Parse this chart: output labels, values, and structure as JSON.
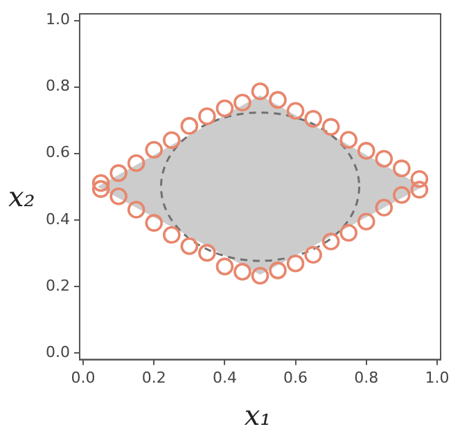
{
  "chart_data": {
    "type": "scatter",
    "xlabel": "x₁",
    "ylabel": "x₂",
    "xlim": [
      -0.01,
      1.01
    ],
    "ylim": [
      -0.02,
      1.02
    ],
    "xticks": [
      {
        "value": 0,
        "label": "0.0"
      },
      0.2,
      0.4,
      0.6,
      0.8,
      {
        "value": 1,
        "label": "1.0"
      }
    ],
    "yticks": [
      {
        "value": 0,
        "label": "0.0"
      },
      0.2,
      0.4,
      0.6,
      0.8,
      {
        "value": 1,
        "label": "1.0"
      }
    ],
    "marker": "circle",
    "series": [
      {
        "color": "#e8866c",
        "x": [
          0.05,
          0.1,
          0.15,
          0.2,
          0.25,
          0.3,
          0.35,
          0.4,
          0.45,
          0.5,
          0.55,
          0.6,
          0.65,
          0.7,
          0.75,
          0.8,
          0.85,
          0.9,
          0.95,
          0.05,
          0.1,
          0.15,
          0.2,
          0.25,
          0.3,
          0.35,
          0.4,
          0.45,
          0.5,
          0.55,
          0.6,
          0.65,
          0.7,
          0.75,
          0.8,
          0.85,
          0.9,
          0.95
        ],
        "values": [
          0.511,
          0.541,
          0.571,
          0.611,
          0.64,
          0.683,
          0.712,
          0.736,
          0.753,
          0.787,
          0.761,
          0.728,
          0.704,
          0.68,
          0.641,
          0.608,
          0.584,
          0.555,
          0.523,
          0.493,
          0.471,
          0.431,
          0.391,
          0.355,
          0.321,
          0.301,
          0.26,
          0.244,
          0.232,
          0.248,
          0.269,
          0.295,
          0.335,
          0.361,
          0.395,
          0.437,
          0.475,
          0.491
        ]
      }
    ]
  }
}
